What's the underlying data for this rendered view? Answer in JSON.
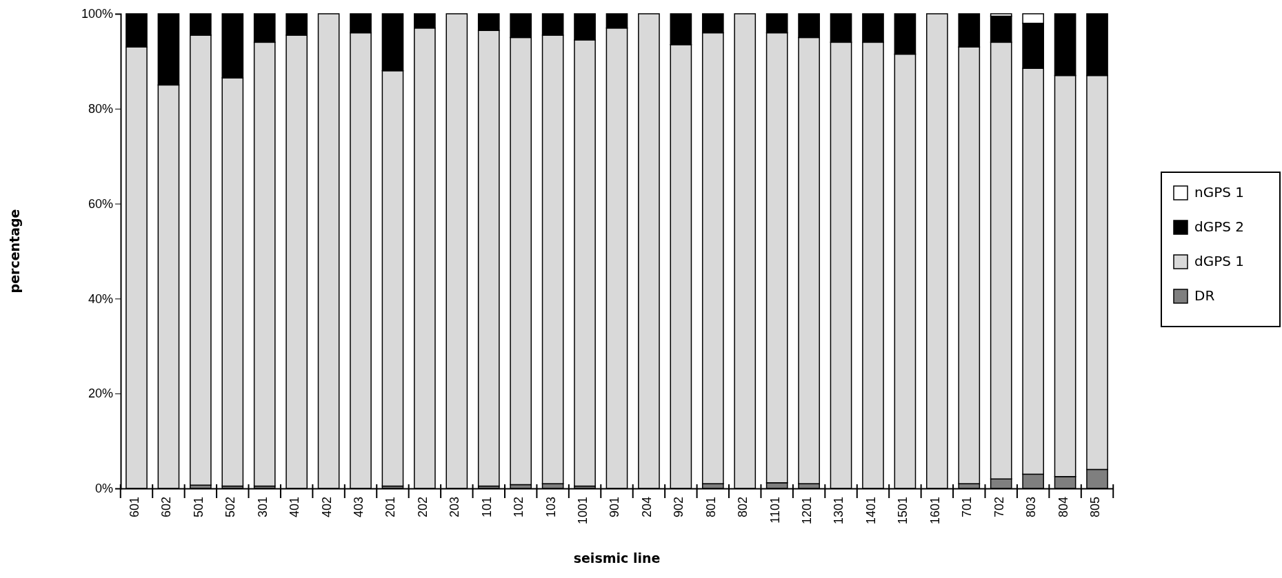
{
  "chart_data": {
    "type": "bar",
    "stacked": true,
    "xlabel": "seismic line",
    "ylabel": "percentage",
    "categories": [
      "601",
      "602",
      "501",
      "502",
      "301",
      "401",
      "402",
      "403",
      "201",
      "202",
      "203",
      "101",
      "102",
      "103",
      "1001",
      "901",
      "204",
      "902",
      "801",
      "802",
      "1101",
      "1201",
      "1301",
      "1401",
      "1501",
      "1601",
      "701",
      "702",
      "803",
      "804",
      "805"
    ],
    "series": [
      {
        "name": "DR",
        "color": "#7f7f7f",
        "values": [
          0,
          0,
          0.7,
          0.5,
          0.5,
          0,
          0,
          0,
          0.5,
          0,
          0,
          0.5,
          0.8,
          1,
          0.5,
          0,
          0,
          0,
          1,
          0,
          1.2,
          1,
          0,
          0,
          0,
          0,
          1,
          2,
          3,
          2.5,
          4
        ]
      },
      {
        "name": "dGPS 1",
        "color": "#d9d9d9",
        "values": [
          93,
          85,
          94.8,
          86,
          93.5,
          95.5,
          100,
          96,
          87.5,
          97,
          100,
          96,
          94.2,
          94.5,
          94,
          97,
          100,
          93.5,
          95,
          100,
          94.8,
          94,
          94,
          94,
          91.5,
          100,
          92,
          92,
          85.5,
          84.5,
          83
        ]
      },
      {
        "name": "dGPS 2",
        "color": "#000000",
        "values": [
          7,
          15,
          4.5,
          13.5,
          6,
          4.5,
          0,
          4,
          12,
          3,
          0,
          3.5,
          5,
          4.5,
          5.5,
          3,
          0,
          6.5,
          4,
          0,
          4,
          5,
          6,
          6,
          8.5,
          0,
          7,
          5.5,
          9.5,
          13,
          13
        ]
      },
      {
        "name": "nGPS 1",
        "color": "#ffffff",
        "values": [
          0,
          0,
          0,
          0,
          0,
          0,
          0,
          0,
          0,
          0,
          0,
          0,
          0,
          0,
          0,
          0,
          0,
          0,
          0,
          0,
          0,
          0,
          0,
          0,
          0,
          0,
          0,
          0.5,
          2,
          0,
          0
        ]
      }
    ],
    "ylim": [
      0,
      100
    ],
    "yticks": [
      {
        "value": 0,
        "label": "0%"
      },
      {
        "value": 20,
        "label": "20%"
      },
      {
        "value": 40,
        "label": "40%"
      },
      {
        "value": 60,
        "label": "60%"
      },
      {
        "value": 80,
        "label": "80%"
      },
      {
        "value": 100,
        "label": "100%"
      }
    ],
    "legend": "right",
    "grid": false
  }
}
